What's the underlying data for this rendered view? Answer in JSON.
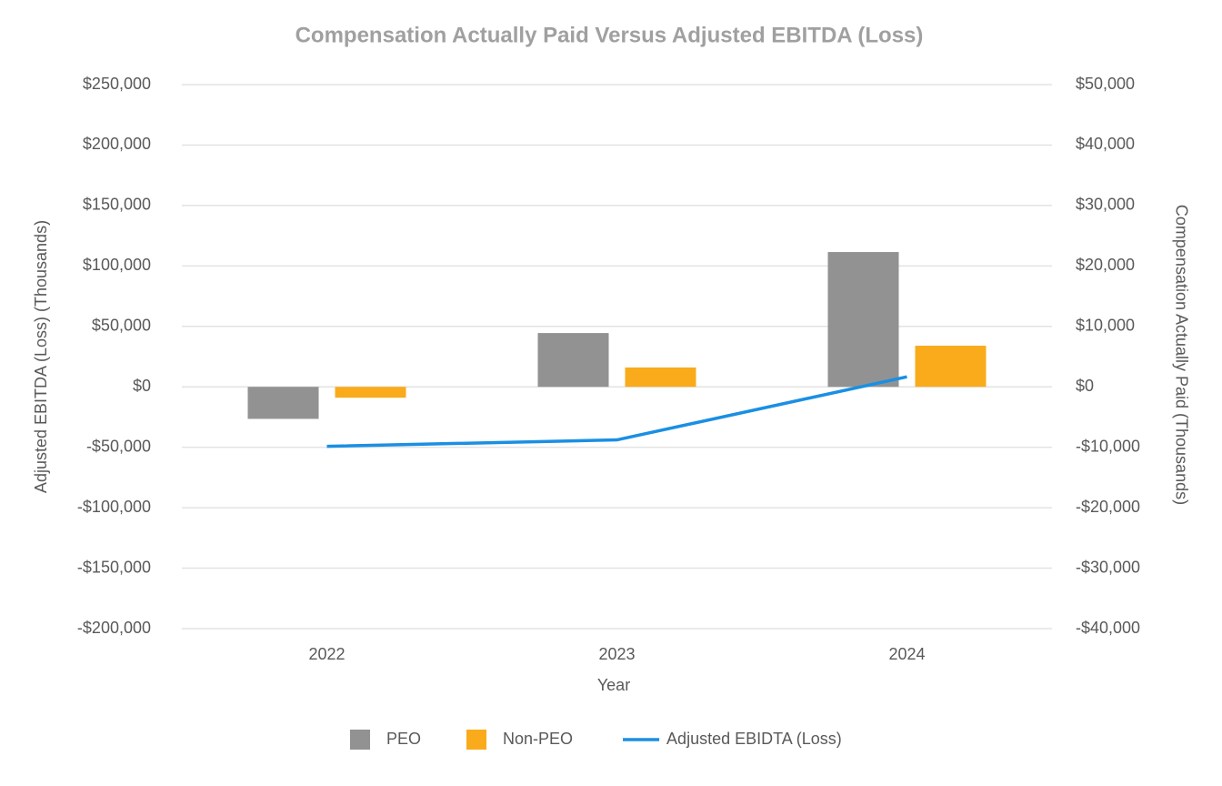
{
  "chart_data": {
    "type": "bar",
    "title": "Compensation Actually Paid Versus Adjusted EBITDA (Loss)",
    "x_label": "Year",
    "y_label": "Adjusted EBITDA  (Loss)  (Thousands)",
    "y2_label": "Compensation Actually Paid (Thousands)",
    "categories": [
      "2022",
      "2023",
      "2024"
    ],
    "series": [
      {
        "name": "PEO",
        "type": "bar",
        "axis": "y2",
        "color": "#929292",
        "values": [
          -5300,
          8900,
          22300
        ]
      },
      {
        "name": "Non-PEO",
        "type": "bar",
        "axis": "y2",
        "color": "#f9ab1c",
        "values": [
          -1800,
          3200,
          6800
        ]
      },
      {
        "name": "Adjusted EBIDTA (Loss)",
        "type": "line",
        "axis": "y",
        "color": "#1a8fe3",
        "values": [
          -49200,
          -43900,
          8300
        ]
      }
    ],
    "ylim": [
      -200000,
      250000
    ],
    "yticks": [
      {
        "value": -200000,
        "label": "-$200,000"
      },
      {
        "value": -150000,
        "label": "-$150,000"
      },
      {
        "value": -100000,
        "label": "-$100,000"
      },
      {
        "value": -50000,
        "label": "-$50,000"
      },
      {
        "value": 0,
        "label": "$0"
      },
      {
        "value": 50000,
        "label": "$50,000"
      },
      {
        "value": 100000,
        "label": "$100,000"
      },
      {
        "value": 150000,
        "label": "$150,000"
      },
      {
        "value": 200000,
        "label": "$200,000"
      },
      {
        "value": 250000,
        "label": "$250,000"
      }
    ],
    "y2lim": [
      -40000,
      50000
    ],
    "y2ticks": [
      {
        "value": -40000,
        "label": "-$40,000"
      },
      {
        "value": -30000,
        "label": "-$30,000"
      },
      {
        "value": -20000,
        "label": "-$20,000"
      },
      {
        "value": -10000,
        "label": "-$10,000"
      },
      {
        "value": 0,
        "label": "$0"
      },
      {
        "value": 10000,
        "label": "$10,000"
      },
      {
        "value": 20000,
        "label": "$20,000"
      },
      {
        "value": 30000,
        "label": "$30,000"
      },
      {
        "value": 40000,
        "label": "$40,000"
      },
      {
        "value": 50000,
        "label": "$50,000"
      }
    ],
    "grid": true,
    "legend": "bottom"
  }
}
